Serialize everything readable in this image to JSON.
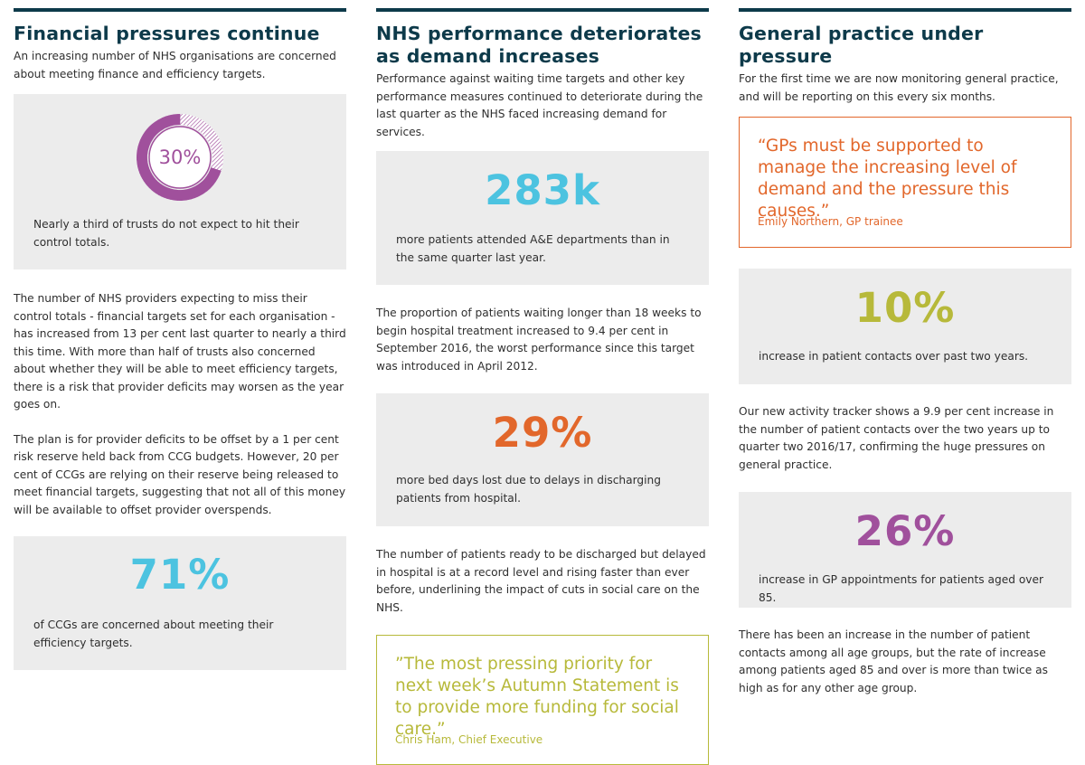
{
  "colors": {
    "navy": "#0d3a4a",
    "purple": "#a0509c",
    "cyan": "#4cc3e0",
    "orange": "#e2672b",
    "olive": "#b7b93a",
    "box_grey": "#ececec"
  },
  "financial": {
    "heading": "Financial pressures continue",
    "intro": "An increasing number of NHS organisations are concerned about meeting finance and efficiency targets.",
    "donut": {
      "label": "30%",
      "value": 0.3,
      "icon": "donut-chart-icon"
    },
    "stat1_text": "Nearly a third of trusts do not expect to hit their control totals.",
    "para1": "The number of NHS providers expecting to miss their control totals - financial targets set for each organisation - has increased from 13 per cent last quarter to nearly a third this time. With more than half of trusts also concerned about whether they will be able to meet efficiency targets, there is a risk that provider deficits may worsen as the year goes on.",
    "para2": "The plan is for provider deficits to be offset by a 1 per cent risk reserve held back from CCG budgets. However, 20 per cent of CCGs are relying on their reserve being released to meet financial targets, suggesting that not all of this money will be available to offset provider overspends.",
    "stat2_number": "71%",
    "stat2_text": "of CCGs are concerned about meeting their efficiency targets."
  },
  "performance": {
    "heading": "NHS performance deteriorates as demand increases",
    "intro": "Performance against waiting time targets and other key performance measures continued to deteriorate during the last quarter as the NHS faced increasing demand for services.",
    "stat1_number": "283k",
    "stat1_text": "more patients attended A&E departments than in the same quarter last year.",
    "para1": "The proportion of patients waiting longer than 18 weeks to begin hospital treatment increased to 9.4 per cent in September 2016, the worst performance since this target was introduced in April 2012.",
    "stat2_number": "29%",
    "stat2_text": "more bed days lost due to delays in discharging patients from hospital.",
    "para2": "The number of patients ready to be discharged but delayed in hospital is at a record level and rising faster than ever before, underlining the impact of cuts in social care on the NHS.",
    "quote_text": "”The most pressing priority for next week’s Autumn Statement is to provide more funding for social care.”",
    "quote_attr": "Chris Ham, Chief Executive"
  },
  "general": {
    "heading": "General practice under pressure",
    "intro": "For the first time we are now monitoring general practice, and will be reporting on this every six months.",
    "quote_text": "“GPs must be supported to manage the increasing level of demand and the pressure this causes.”",
    "quote_attr": "Emily Northern, GP trainee",
    "stat1_number": "10%",
    "stat1_text": "increase in patient contacts over past two years.",
    "para1": "Our new activity tracker shows a 9.9 per cent increase in the number of patient contacts over the two years up to quarter two 2016/17, confirming the huge pressures on general practice.",
    "stat2_number": "26%",
    "stat2_text": "increase in GP appointments for patients aged over 85.",
    "para2": "There has been an increase in the number of patient contacts among all age groups, but the rate of increase among patients aged 85 and over is more than twice as high as for any other age group."
  }
}
